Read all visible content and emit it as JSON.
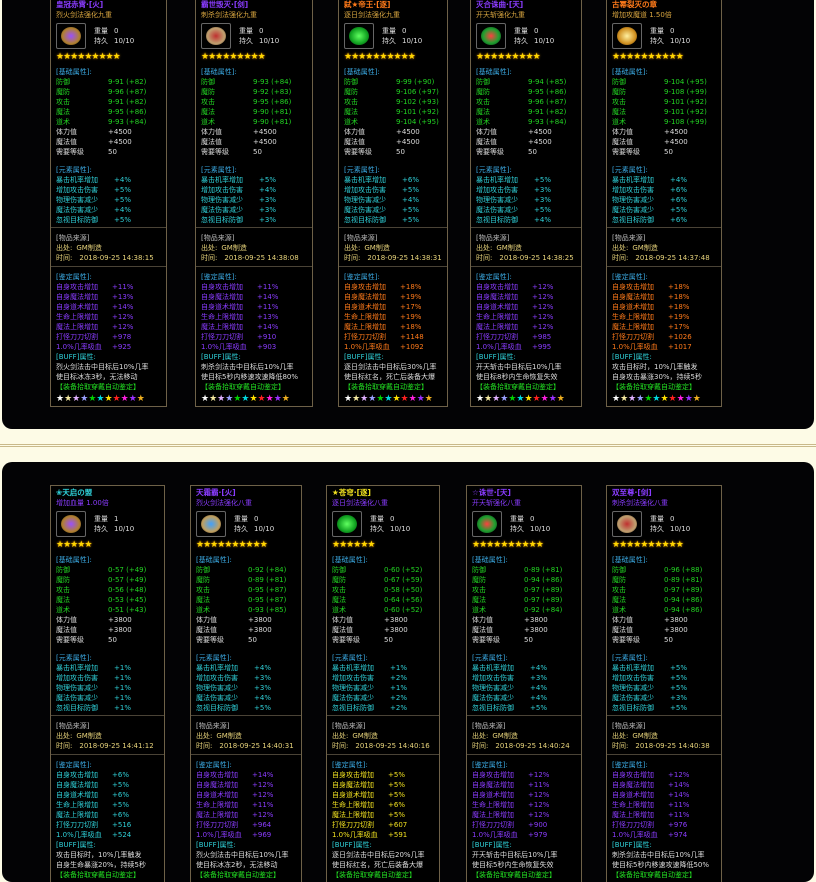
{
  "common": {
    "weight_label": "重量",
    "durability_label": "持久",
    "base_header": "[基础属性]:",
    "elem_header": "[元素属性]:",
    "source_header": "[物品来源]",
    "origin_label": "出处:",
    "time_label": "时间:",
    "appraise_header": "[鉴定属性]:",
    "buff_header": "[BUFF]属性:",
    "auto_appraise": "【装备拾取穿戴自动鉴定】",
    "base_labels": [
      "防御",
      "魔防",
      "攻击",
      "魔法",
      "道术"
    ],
    "stat_labels": [
      "体力值",
      "魔法值",
      "需要等级"
    ],
    "elem_labels": [
      "暴击机率增加",
      "增加攻击伤害",
      "物理伤害减少",
      "魔法伤害减少",
      "忽视目标防御"
    ],
    "appraise_labels": [
      "自身攻击增加",
      "自身魔法增加",
      "自身道术增加",
      "生命上限增加",
      "魔法上限增加",
      "打怪刀刀切割",
      "1.0%几率吸血"
    ],
    "rainbow_colors": [
      "#ffffff",
      "#f5e9a0",
      "#e0b0ff",
      "#9aa0ff",
      "#00d000",
      "#00d8e0",
      "#ffe000",
      "#ff2020",
      "#ff20e0",
      "#9a30ff",
      "#f0b020"
    ]
  },
  "colors": {
    "purple": "#8a3cff",
    "orange": "#ff7a1a",
    "cyan": "#2fd0d8",
    "yellow": "#f0e020",
    "gold": "#d9a640"
  },
  "rows": [
    {
      "cards": [
        {
          "title": "皇冠赤霄·[火]",
          "title_color": "#8a3cff",
          "subtitle": "烈火剑法强化九重",
          "subtitle_color": "#d9a640",
          "icon": "crown-icon",
          "weight": "0",
          "durability": "10/10",
          "stars": 9,
          "base": [
            "9-91 (+82)",
            "9-96 (+87)",
            "9-91 (+82)",
            "9-95 (+86)",
            "9-93 (+84)"
          ],
          "stats": [
            "+4500",
            "+4500",
            "50"
          ],
          "elem": [
            "+4%",
            "+5%",
            "+5%",
            "+4%",
            "+5%"
          ],
          "origin": "GM制造",
          "time": "2018-09-25 14:38:15",
          "appraise_color": "#8a3cff",
          "appraise": [
            "+11%",
            "+13%",
            "+14%",
            "+12%",
            "+12%",
            "+978",
            "+925"
          ],
          "buff": [
            "烈火剑法击中目标后10%几率",
            "使目标冰冻3秒，无法移动"
          ]
        },
        {
          "title": "霸世毁灭·[剑]",
          "title_color": "#8a3cff",
          "subtitle": "刺杀剑法强化九重",
          "subtitle_color": "#d9a640",
          "icon": "winged-emblem-icon",
          "weight": "0",
          "durability": "10/10",
          "stars": 9,
          "base": [
            "9-93 (+84)",
            "9-92 (+83)",
            "9-95 (+86)",
            "9-90 (+81)",
            "9-90 (+81)"
          ],
          "stats": [
            "+4500",
            "+4500",
            "50"
          ],
          "elem": [
            "+5%",
            "+4%",
            "+3%",
            "+3%",
            "+3%"
          ],
          "origin": "GM制造",
          "time": "2018-09-25 14:38:08",
          "appraise_color": "#8a3cff",
          "appraise": [
            "+11%",
            "+14%",
            "+11%",
            "+13%",
            "+14%",
            "+910",
            "+903"
          ],
          "buff": [
            "刺杀剑法击中目标后10%几率",
            "使目标5秒内移速攻速降低80%"
          ]
        },
        {
          "title": "弑★帝王·[逐]",
          "title_color": "#ff7a1a",
          "subtitle": "逐日剑法强化九重",
          "subtitle_color": "#d9a640",
          "icon": "jade-icon",
          "weight": "0",
          "durability": "10/10",
          "stars": 10,
          "base": [
            "9-99 (+90)",
            "9-106 (+97)",
            "9-102 (+93)",
            "9-101 (+92)",
            "9-104 (+95)"
          ],
          "stats": [
            "+4500",
            "+4500",
            "50"
          ],
          "elem": [
            "+6%",
            "+5%",
            "+4%",
            "+5%",
            "+5%"
          ],
          "origin": "GM制造",
          "time": "2018-09-25 14:38:31",
          "appraise_color": "#ff7a1a",
          "appraise": [
            "+18%",
            "+19%",
            "+17%",
            "+19%",
            "+18%",
            "+1148",
            "+1092"
          ],
          "buff": [
            "逐日剑法击中目标后30%几率",
            "使目标红名，死亡后装备大爆"
          ]
        },
        {
          "title": "灭合诛曲·[天]",
          "title_color": "#8a3cff",
          "subtitle": "开天斩强化九重",
          "subtitle_color": "#d9a640",
          "icon": "dragon-orb-icon",
          "weight": "0",
          "durability": "10/10",
          "stars": 9,
          "base": [
            "9-94 (+85)",
            "9-95 (+86)",
            "9-96 (+87)",
            "9-91 (+82)",
            "9-93 (+84)"
          ],
          "stats": [
            "+4500",
            "+4500",
            "50"
          ],
          "elem": [
            "+5%",
            "+3%",
            "+3%",
            "+5%",
            "+4%"
          ],
          "origin": "GM制造",
          "time": "2018-09-25 14:38:25",
          "appraise_color": "#8a3cff",
          "appraise": [
            "+12%",
            "+12%",
            "+12%",
            "+12%",
            "+12%",
            "+985",
            "+995"
          ],
          "buff": [
            "开天斩击中目标后10%几率",
            "使目标8秒内生命恢复失效"
          ]
        },
        {
          "title": "古幂裂灭の章",
          "title_color": "#ff7a1a",
          "subtitle": "增加攻魔道 1.50倍",
          "subtitle_color": "#d9a640",
          "icon": "golden-cross-icon",
          "weight": "0",
          "durability": "10/10",
          "stars": 10,
          "base": [
            "9-104 (+95)",
            "9-108 (+99)",
            "9-101 (+92)",
            "9-101 (+92)",
            "9-108 (+99)"
          ],
          "stats": [
            "+4500",
            "+4500",
            "50"
          ],
          "elem": [
            "+4%",
            "+6%",
            "+6%",
            "+5%",
            "+6%"
          ],
          "origin": "GM制造",
          "time": "2018-09-25 14:37:48",
          "appraise_color": "#ff7a1a",
          "appraise": [
            "+18%",
            "+18%",
            "+18%",
            "+19%",
            "+17%",
            "+1026",
            "+1017"
          ],
          "buff": [
            "攻击目标时，10%几率触发",
            "自身攻击暴涨30%，持续5秒"
          ]
        }
      ]
    },
    {
      "cards": [
        {
          "title": "❀天启の盟",
          "title_color": "#2fd0d8",
          "subtitle": "增加血量 1.00倍",
          "subtitle_color": "#8a3cff",
          "icon": "crown-icon",
          "weight": "1",
          "durability": "10/10",
          "stars": 5,
          "base": [
            "0-57 (+49)",
            "0-57 (+49)",
            "0-56 (+48)",
            "0-53 (+45)",
            "0-51 (+43)"
          ],
          "stats": [
            "+3800",
            "+3800",
            "50"
          ],
          "elem": [
            "+1%",
            "+1%",
            "+1%",
            "+1%",
            "+1%"
          ],
          "origin": "GM制造",
          "time": "2018-09-25 14:41:12",
          "appraise_color": "#2fd0d8",
          "appraise": [
            "+6%",
            "+5%",
            "+6%",
            "+5%",
            "+6%",
            "+516",
            "+524"
          ],
          "buff": [
            "攻击目标时，10%几率触发",
            "自身生命暴涨20%，持续5秒"
          ]
        },
        {
          "title": "天霜霸·[火]",
          "title_color": "#8a3cff",
          "subtitle": "烈火剑法强化八重",
          "subtitle_color": "#8a3cff",
          "icon": "blue-gem-emblem-icon",
          "weight": "0",
          "durability": "10/10",
          "stars": 10,
          "base": [
            "0-92 (+84)",
            "0-89 (+81)",
            "0-95 (+87)",
            "0-95 (+87)",
            "0-93 (+85)"
          ],
          "stats": [
            "+3800",
            "+3800",
            "50"
          ],
          "elem": [
            "+4%",
            "+3%",
            "+3%",
            "+4%",
            "+5%"
          ],
          "origin": "GM制造",
          "time": "2018-09-25 14:40:31",
          "appraise_color": "#8a3cff",
          "appraise": [
            "+14%",
            "+12%",
            "+12%",
            "+11%",
            "+12%",
            "+964",
            "+969"
          ],
          "buff": [
            "烈火剑法击中目标后10%几率",
            "使目标冰冻2秒，无法移动"
          ]
        },
        {
          "title": "★苍穹·[逐]",
          "title_color": "#f0e020",
          "subtitle": "逐日剑法强化八重",
          "subtitle_color": "#8a3cff",
          "icon": "jade-icon",
          "weight": "0",
          "durability": "10/10",
          "stars": 6,
          "base": [
            "0-60 (+52)",
            "0-67 (+59)",
            "0-58 (+50)",
            "0-64 (+56)",
            "0-60 (+52)"
          ],
          "stats": [
            "+3800",
            "+3800",
            "50"
          ],
          "elem": [
            "+1%",
            "+2%",
            "+1%",
            "+2%",
            "+2%"
          ],
          "origin": "GM制造",
          "time": "2018-09-25 14:40:16",
          "appraise_color": "#f0e020",
          "appraise": [
            "+5%",
            "+5%",
            "+5%",
            "+6%",
            "+5%",
            "+607",
            "+591"
          ],
          "buff": [
            "逐日剑法击中目标后20%几率",
            "使目标红名，死亡后装备大爆"
          ]
        },
        {
          "title": "☆诛世·[天]",
          "title_color": "#8a3cff",
          "subtitle": "开天斩强化八重",
          "subtitle_color": "#8a3cff",
          "icon": "dragon-orb-icon",
          "weight": "0",
          "durability": "10/10",
          "stars": 10,
          "base": [
            "0-89 (+81)",
            "0-94 (+86)",
            "0-97 (+89)",
            "0-97 (+89)",
            "0-92 (+84)"
          ],
          "stats": [
            "+3800",
            "+3800",
            "50"
          ],
          "elem": [
            "+4%",
            "+3%",
            "+4%",
            "+4%",
            "+5%"
          ],
          "origin": "GM制造",
          "time": "2018-09-25 14:40:24",
          "appraise_color": "#8a3cff",
          "appraise": [
            "+12%",
            "+11%",
            "+12%",
            "+12%",
            "+12%",
            "+900",
            "+979"
          ],
          "buff": [
            "开天斩击中目标后10%几率",
            "使目标5秒内生命恢复失效"
          ]
        },
        {
          "title": "双至尊·[剑]",
          "title_color": "#8a3cff",
          "subtitle": "刺杀剑法强化八重",
          "subtitle_color": "#8a3cff",
          "icon": "winged-emblem-icon",
          "weight": "0",
          "durability": "10/10",
          "stars": 10,
          "base": [
            "0-96 (+88)",
            "0-89 (+81)",
            "0-97 (+89)",
            "0-94 (+86)",
            "0-94 (+86)"
          ],
          "stats": [
            "+3800",
            "+3800",
            "50"
          ],
          "elem": [
            "+5%",
            "+5%",
            "+5%",
            "+3%",
            "+5%"
          ],
          "origin": "GM制造",
          "time": "2018-09-25 14:40:38",
          "appraise_color": "#8a3cff",
          "appraise": [
            "+12%",
            "+14%",
            "+14%",
            "+11%",
            "+11%",
            "+976",
            "+974"
          ],
          "buff": [
            "刺杀剑法击中目标后10%几率",
            "使目标5秒内移速攻速降低50%"
          ]
        }
      ]
    }
  ]
}
